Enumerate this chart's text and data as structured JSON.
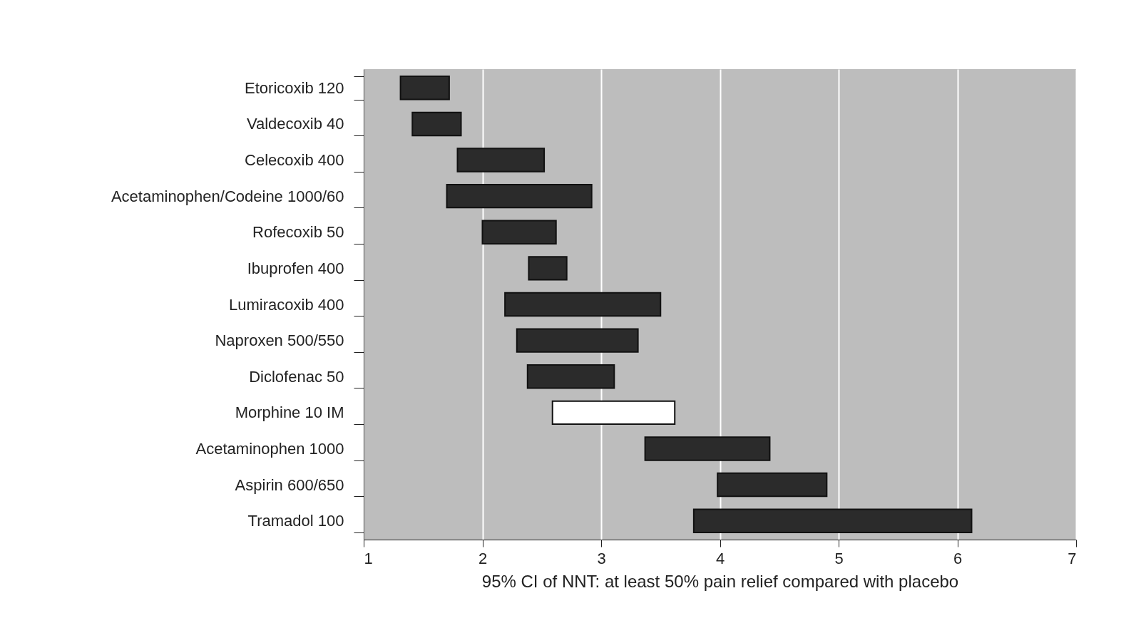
{
  "chart_data": {
    "type": "bar",
    "orientation": "horizontal",
    "xlabel": "95% CI of NNT: at least 50% pain relief compared with placebo",
    "categories": [
      "Etoricoxib 120",
      "Valdecoxib 40",
      "Celecoxib 400",
      "Acetaminophen/Codeine 1000/60",
      "Rofecoxib 50",
      "Ibuprofen 400",
      "Lumiracoxib 400",
      "Naproxen 500/550",
      "Diclofenac 50",
      "Morphine 10 IM",
      "Acetaminophen 1000",
      "Aspirin 600/650",
      "Tramadol 100"
    ],
    "base": [
      1.31,
      1.41,
      1.79,
      1.7,
      2.0,
      2.39,
      2.19,
      2.29,
      2.38,
      2.59,
      3.37,
      3.98,
      3.78
    ],
    "values": [
      0.41,
      0.41,
      0.73,
      1.22,
      0.62,
      0.32,
      1.31,
      1.02,
      0.73,
      1.03,
      1.05,
      0.92,
      2.34
    ],
    "colors": [
      "#2b2b2b",
      "#2b2b2b",
      "#2b2b2b",
      "#2b2b2b",
      "#2b2b2b",
      "#2b2b2b",
      "#2b2b2b",
      "#2b2b2b",
      "#2b2b2b",
      "#ffffff",
      "#2b2b2b",
      "#2b2b2b",
      "#2b2b2b"
    ],
    "xlim": [
      1,
      7
    ],
    "xticks": [
      1,
      2,
      3,
      4,
      5,
      6,
      7
    ],
    "grid": "x"
  }
}
